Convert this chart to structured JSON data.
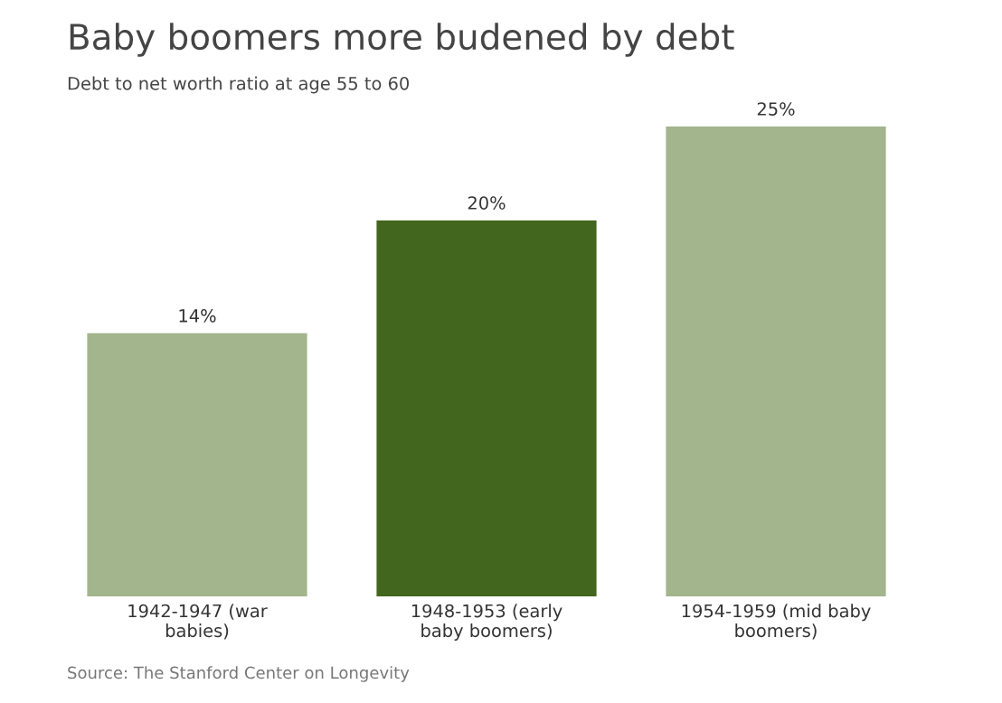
{
  "chart_data": {
    "type": "bar",
    "title": "Baby boomers more budened by debt",
    "subtitle": "Debt to net worth ratio at age 55 to 60",
    "categories": [
      "1942-1947 (war\nbabies)",
      "1948-1953 (early\nbaby boomers)",
      "1954-1959 (mid baby\nboomers)"
    ],
    "values": [
      14,
      20,
      25
    ],
    "colors": [
      "#a3b58d",
      "#43661f",
      "#a3b58d"
    ],
    "value_labels": [
      "14%",
      "20%",
      "25%"
    ],
    "annotations": [
      "Source: The Stanford Center on Longevity"
    ]
  }
}
